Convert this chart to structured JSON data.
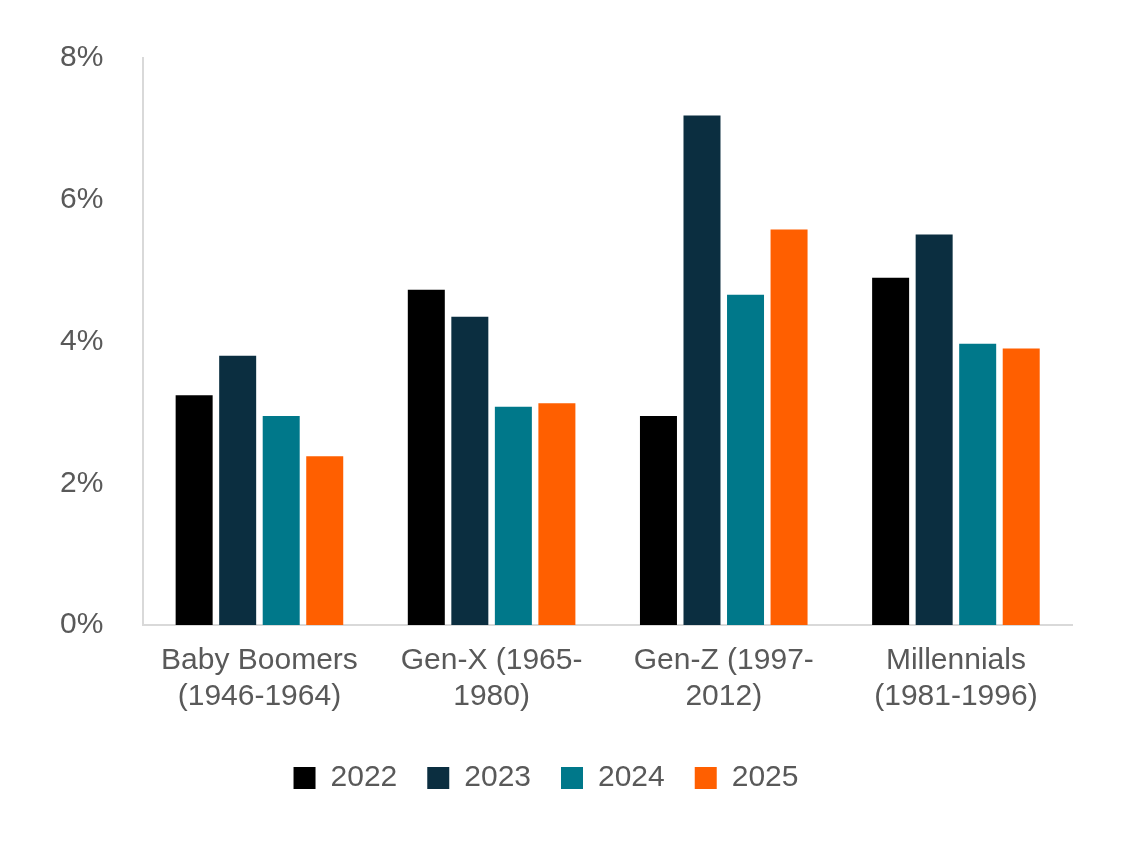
{
  "chart_data": {
    "type": "bar",
    "categories": [
      "Baby Boomers (1946-1964)",
      "Gen-X (1965-1980)",
      "Gen-Z (1997-2012)",
      "Millennials (1981-1996)"
    ],
    "series": [
      {
        "name": "2022",
        "color": "#000000",
        "values": [
          3.24,
          4.73,
          2.95,
          4.9
        ]
      },
      {
        "name": "2023",
        "color": "#0b2e40",
        "values": [
          3.8,
          4.35,
          7.19,
          5.51
        ]
      },
      {
        "name": "2024",
        "color": "#00788a",
        "values": [
          2.95,
          3.08,
          4.66,
          3.97
        ]
      },
      {
        "name": "2025",
        "color": "#ff5f00",
        "values": [
          2.38,
          3.13,
          5.58,
          3.9
        ]
      }
    ],
    "ylim": [
      0,
      8
    ],
    "yticks": [
      {
        "value": 0,
        "label": "0%"
      },
      {
        "value": 2,
        "label": "2%"
      },
      {
        "value": 4,
        "label": "4%"
      },
      {
        "value": 6,
        "label": "6%"
      },
      {
        "value": 8,
        "label": "8%"
      }
    ],
    "grid": false,
    "legend": "bottom"
  }
}
